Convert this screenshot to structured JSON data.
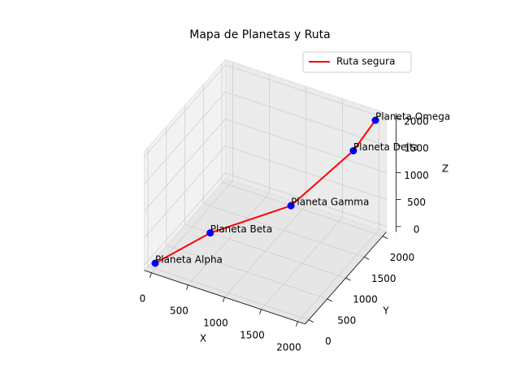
{
  "chart_data": {
    "type": "line3d",
    "title": "Mapa de Planetas y Ruta",
    "xlabel": "X",
    "ylabel": "Y",
    "zlabel": "Z",
    "xlim": [
      -100,
      2100
    ],
    "ylim": [
      -100,
      2100
    ],
    "zlim": [
      -100,
      2100
    ],
    "xticks": [
      0,
      500,
      1000,
      1500,
      2000
    ],
    "yticks": [
      0,
      500,
      1000,
      1500,
      2000
    ],
    "zticks": [
      0,
      500,
      1000,
      1500,
      2000
    ],
    "grid": true,
    "legend": "upper right",
    "series": [
      {
        "name": "Ruta segura",
        "color": "red",
        "x": [
          0,
          500,
          1200,
          1800,
          2000
        ],
        "y": [
          0,
          500,
          1300,
          1800,
          2000
        ],
        "z": [
          0,
          400,
          600,
          1500,
          2000
        ]
      }
    ],
    "points": {
      "color": "blue",
      "labels": [
        "Planeta Alpha",
        "Planeta Beta",
        "Planeta Gamma",
        "Planeta Delta",
        "Planeta Omega"
      ],
      "x": [
        0,
        500,
        1200,
        1800,
        2000
      ],
      "y": [
        0,
        500,
        1300,
        1800,
        2000
      ],
      "z": [
        0,
        400,
        600,
        1500,
        2000
      ]
    }
  }
}
